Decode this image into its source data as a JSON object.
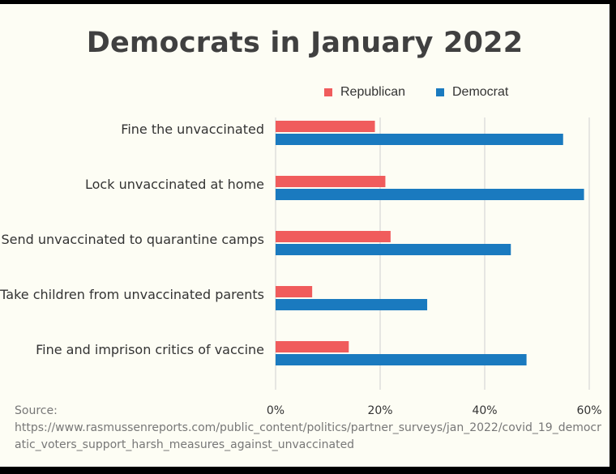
{
  "chart_data": {
    "type": "bar",
    "orientation": "horizontal",
    "title": "Democrats in January 2022",
    "categories": [
      "Fine the unvaccinated",
      "Lock unvaccinated at home",
      "Send unvaccinated to quarantine camps",
      "Take children from unvaccinated parents",
      "Fine and imprison critics of vaccine"
    ],
    "series": [
      {
        "name": "Republican",
        "color": "#f05c5c",
        "values": [
          19,
          21,
          22,
          7,
          14
        ]
      },
      {
        "name": "Democrat",
        "color": "#1a7abf",
        "values": [
          55,
          59,
          45,
          29,
          48
        ]
      }
    ],
    "xlim": [
      0,
      60
    ],
    "xticks": [
      "0%",
      "20%",
      "40%",
      "60%"
    ],
    "xtick_values": [
      0,
      20,
      40,
      60
    ],
    "grid": true,
    "legend_position": "top"
  },
  "source": {
    "label": "Source:",
    "url": "https://www.rasmussenreports.com/public_content/politics/partner_surveys/jan_2022/covid_19_democratic_voters_support_harsh_measures_against_unvaccinated"
  }
}
